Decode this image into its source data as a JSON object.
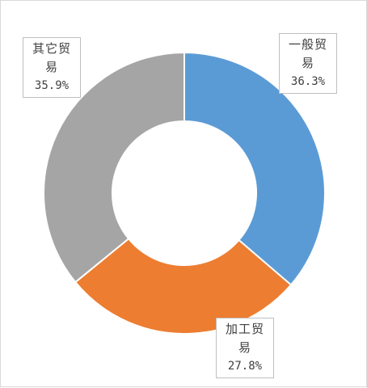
{
  "chart_data": {
    "type": "pie",
    "donut": true,
    "title": "",
    "legend": "none",
    "slices": [
      {
        "label": "一般贸易",
        "value": 36.3,
        "display": "36.3%",
        "color": "#5b9bd5",
        "label_line1": "一般贸",
        "label_line2": "易"
      },
      {
        "label": "加工贸易",
        "value": 27.8,
        "display": "27.8%",
        "color": "#ed7d31",
        "label_line1": "加工贸",
        "label_line2": "易"
      },
      {
        "label": "其它贸易",
        "value": 35.9,
        "display": "35.9%",
        "color": "#a5a5a5",
        "label_line1": "其它贸",
        "label_line2": "易"
      }
    ]
  }
}
